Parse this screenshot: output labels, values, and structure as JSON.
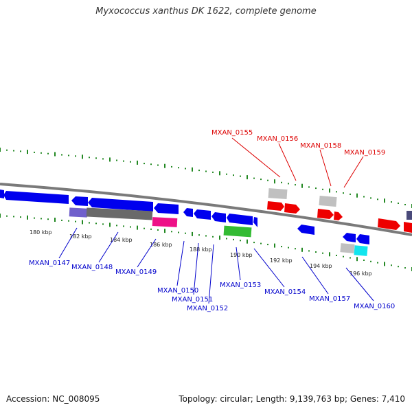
{
  "title": "Myxococcus xanthus DK 1622, complete genome",
  "footer": {
    "accession": "Accession: NC_008095",
    "stats": "Topology: circular; Length: 9,139,763 bp; Genes: 7,410"
  },
  "colors": {
    "backbone": "#7a7a7a",
    "tick_track": "#228822",
    "forward_label": "#dd0000",
    "reverse_label": "#0000cc"
  },
  "scale_labels": [
    "180 kbp",
    "182 kbp",
    "184 kbp",
    "186 kbp",
    "188 kbp",
    "190 kbp",
    "192 kbp",
    "194 kbp",
    "196 kbp"
  ],
  "gene_labels": {
    "forward": [
      "MXAN_0155",
      "MXAN_0156",
      "MXAN_0158",
      "MXAN_0159"
    ],
    "reverse": [
      "MXAN_0147",
      "MXAN_0148",
      "MXAN_0149",
      "MXAN_0150",
      "MXAN_0151",
      "MXAN_0152",
      "MXAN_0153",
      "MXAN_0154",
      "MXAN_0157",
      "MXAN_0160"
    ]
  }
}
